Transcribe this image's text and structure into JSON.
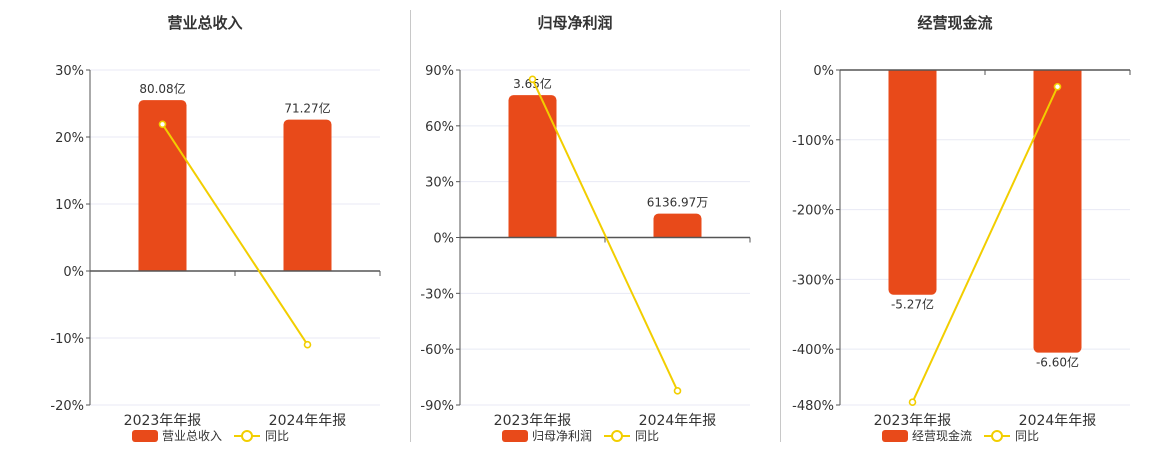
{
  "colors": {
    "bar": "#E84A1A",
    "line": "#F2CE00",
    "grid": "#E8EAF4",
    "axis": "#555555",
    "text": "#333333"
  },
  "legend_line_label": "同比",
  "chart_data": [
    {
      "type": "bar",
      "title": "营业总收入",
      "categories": [
        "2023年年报",
        "2024年年报"
      ],
      "ylim": [
        -20,
        30
      ],
      "yticks": [
        30,
        20,
        10,
        0,
        -10,
        -20
      ],
      "ytick_labels": [
        "30%",
        "20%",
        "10%",
        "0%",
        "-10%",
        "-20%"
      ],
      "zero_axis": 0,
      "series": [
        {
          "name": "营业总收入",
          "kind": "bar",
          "values": [
            25.5,
            22.6
          ],
          "labels": [
            "80.08亿",
            "71.27亿"
          ]
        },
        {
          "name": "同比",
          "kind": "line",
          "values": [
            21.9,
            -11.0
          ]
        }
      ],
      "grid": true,
      "legend": "bottom-center"
    },
    {
      "type": "bar",
      "title": "归母净利润",
      "categories": [
        "2023年年报",
        "2024年年报"
      ],
      "ylim": [
        -90,
        90
      ],
      "yticks": [
        90,
        60,
        30,
        0,
        -30,
        -60,
        -90
      ],
      "ytick_labels": [
        "90%",
        "60%",
        "30%",
        "0%",
        "-30%",
        "-60%",
        "-90%"
      ],
      "zero_axis": 0,
      "series": [
        {
          "name": "归母净利润",
          "kind": "bar",
          "values": [
            76.5,
            12.8
          ],
          "labels": [
            "3.65亿",
            "6136.97万"
          ]
        },
        {
          "name": "同比",
          "kind": "line",
          "values": [
            85,
            -82.4
          ]
        }
      ],
      "grid": true,
      "legend": "bottom-center"
    },
    {
      "type": "bar",
      "title": "经营现金流",
      "categories": [
        "2023年年报",
        "2024年年报"
      ],
      "ylim": [
        -480,
        0
      ],
      "yticks": [
        0,
        -100,
        -200,
        -300,
        -400,
        -480
      ],
      "ytick_labels": [
        "0%",
        "-100%",
        "-200%",
        "-300%",
        "-400%",
        "-480%"
      ],
      "zero_axis": 0,
      "series": [
        {
          "name": "经营现金流",
          "kind": "bar",
          "values": [
            -322,
            -405
          ],
          "labels": [
            "-5.27亿",
            "-6.60亿"
          ]
        },
        {
          "name": "同比",
          "kind": "line",
          "values": [
            -476,
            -24
          ]
        }
      ],
      "grid": true,
      "legend": "bottom-center"
    }
  ]
}
